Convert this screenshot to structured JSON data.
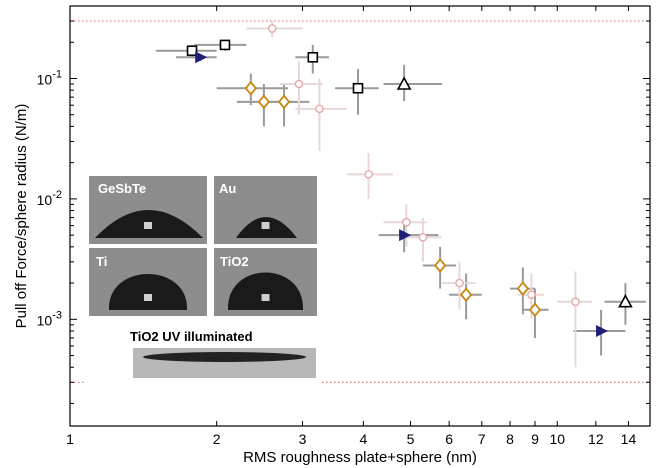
{
  "chart_data": {
    "type": "scatter",
    "title": "",
    "xlabel": "RMS roughness plate+sphere (nm)",
    "ylabel": "Pull off Force/sphere radius (N/m)",
    "xscale": "log",
    "yscale": "log",
    "xlim": [
      1,
      15.5
    ],
    "ylim": [
      0.00013,
      0.4
    ],
    "x_ticks": [
      1,
      2,
      3,
      4,
      5,
      6,
      7,
      8,
      9,
      10,
      12,
      14
    ],
    "x_tick_labels": [
      "1",
      "2",
      "3",
      "4",
      "5",
      "6",
      "7",
      "8",
      "9",
      "10",
      "12",
      "14"
    ],
    "y_ticks": [
      0.001,
      0.01,
      0.1
    ],
    "y_tick_labels": [
      "10^-3",
      "10^-2",
      "10^-1"
    ],
    "reference_lines": [
      {
        "y": 0.3,
        "color": "#cc6666",
        "style": "dotted"
      },
      {
        "y": 0.0003,
        "color": "#cc6666",
        "style": "dotted"
      }
    ],
    "series": [
      {
        "marker": "square",
        "color": "#000000",
        "points": [
          {
            "x": 1.78,
            "y": 0.17,
            "xerr": [
              1.5,
              2.0
            ],
            "yerr": [
              0.15,
              0.19
            ]
          },
          {
            "x": 2.08,
            "y": 0.19,
            "xerr": [
              1.8,
              2.3
            ],
            "yerr": [
              0.17,
              0.21
            ]
          },
          {
            "x": 3.15,
            "y": 0.15,
            "xerr": [
              2.9,
              3.4
            ],
            "yerr": [
              0.11,
              0.19
            ]
          },
          {
            "x": 3.9,
            "y": 0.083,
            "xerr": [
              3.5,
              4.3
            ],
            "yerr": [
              0.05,
              0.12
            ]
          }
        ]
      },
      {
        "marker": "triangle-up",
        "color": "#000000",
        "points": [
          {
            "x": 4.85,
            "y": 0.09,
            "xerr": [
              4.4,
              5.8
            ],
            "yerr": [
              0.065,
              0.13
            ]
          },
          {
            "x": 13.8,
            "y": 0.0014,
            "xerr": [
              12.5,
              15.2
            ],
            "yerr": [
              0.0009,
              0.002
            ]
          }
        ]
      },
      {
        "marker": "triangle-right",
        "color": "#1f1f7a",
        "points": [
          {
            "x": 1.85,
            "y": 0.15,
            "xerr": [
              1.65,
              2.0
            ],
            "yerr": [
              0.14,
              0.16
            ]
          },
          {
            "x": 4.85,
            "y": 0.005,
            "xerr": [
              4.3,
              5.7
            ],
            "yerr": [
              0.0036,
              0.0065
            ]
          },
          {
            "x": 12.3,
            "y": 0.0008,
            "xerr": [
              10.8,
              13.8
            ],
            "yerr": [
              0.0005,
              0.0012
            ]
          }
        ]
      },
      {
        "marker": "diamond",
        "color": "#c8860a",
        "points": [
          {
            "x": 2.35,
            "y": 0.083,
            "xerr": [
              2.0,
              2.8
            ],
            "yerr": [
              0.06,
              0.11
            ]
          },
          {
            "x": 2.5,
            "y": 0.064,
            "xerr": [
              2.2,
              2.9
            ],
            "yerr": [
              0.04,
              0.09
            ]
          },
          {
            "x": 2.75,
            "y": 0.064,
            "xerr": [
              2.45,
              3.1
            ],
            "yerr": [
              0.04,
              0.09
            ]
          },
          {
            "x": 5.75,
            "y": 0.0028,
            "xerr": [
              5.3,
              6.2
            ],
            "yerr": [
              0.0018,
              0.004
            ]
          },
          {
            "x": 6.5,
            "y": 0.0016,
            "xerr": [
              6.0,
              7.0
            ],
            "yerr": [
              0.001,
              0.0024
            ]
          },
          {
            "x": 8.5,
            "y": 0.0018,
            "xerr": [
              8.0,
              9.0
            ],
            "yerr": [
              0.0011,
              0.0027
            ]
          },
          {
            "x": 9.0,
            "y": 0.0012,
            "xerr": [
              8.5,
              9.6
            ],
            "yerr": [
              0.0007,
              0.0018
            ]
          }
        ]
      },
      {
        "marker": "circle",
        "color": "#e8a8a8",
        "points": [
          {
            "x": 2.6,
            "y": 0.26,
            "xerr": [
              2.3,
              3.0
            ],
            "yerr": [
              0.22,
              0.3
            ]
          },
          {
            "x": 2.95,
            "y": 0.09,
            "xerr": [
              2.7,
              3.3
            ],
            "yerr": [
              0.05,
              0.14
            ]
          },
          {
            "x": 3.25,
            "y": 0.056,
            "xerr": [
              2.9,
              3.7
            ],
            "yerr": [
              0.025,
              0.1
            ]
          },
          {
            "x": 4.1,
            "y": 0.016,
            "xerr": [
              3.7,
              4.6
            ],
            "yerr": [
              0.01,
              0.024
            ]
          },
          {
            "x": 4.9,
            "y": 0.0064,
            "xerr": [
              4.4,
              5.4
            ],
            "yerr": [
              0.004,
              0.009
            ]
          },
          {
            "x": 5.3,
            "y": 0.0048,
            "xerr": [
              4.9,
              5.8
            ],
            "yerr": [
              0.003,
              0.007
            ]
          },
          {
            "x": 6.3,
            "y": 0.002,
            "xerr": [
              5.8,
              6.8
            ],
            "yerr": [
              0.0012,
              0.003
            ]
          },
          {
            "x": 8.85,
            "y": 0.0016,
            "xerr": [
              8.3,
              9.4
            ],
            "yerr": [
              0.001,
              0.0024
            ]
          },
          {
            "x": 10.9,
            "y": 0.0014,
            "xerr": [
              10.0,
              11.8
            ],
            "yerr": [
              0.0004,
              0.0025
            ]
          }
        ]
      }
    ],
    "inset": {
      "panels": [
        {
          "label": "GeSbTe"
        },
        {
          "label": "Au"
        },
        {
          "label": "Ti"
        },
        {
          "label": "TiO2"
        },
        {
          "label": "TiO2 UV illuminated"
        }
      ]
    }
  }
}
